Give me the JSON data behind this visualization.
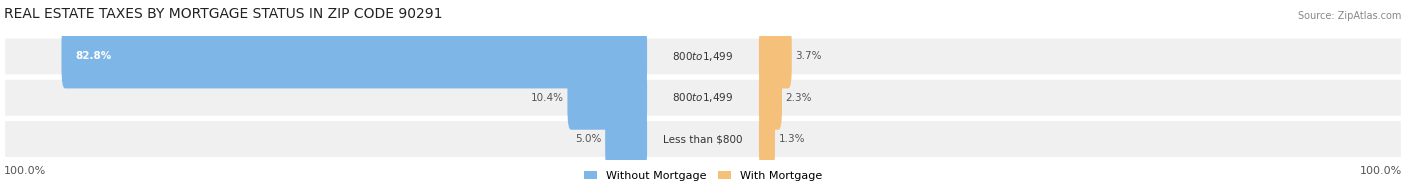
{
  "title": "REAL ESTATE TAXES BY MORTGAGE STATUS IN ZIP CODE 90291",
  "source": "Source: ZipAtlas.com",
  "rows": [
    {
      "label": "Less than $800",
      "without_mortgage": 5.0,
      "with_mortgage": 1.3
    },
    {
      "label": "$800 to $1,499",
      "without_mortgage": 10.4,
      "with_mortgage": 2.3
    },
    {
      "label": "$800 to $1,499",
      "without_mortgage": 82.8,
      "with_mortgage": 3.7
    }
  ],
  "color_without": "#7EB6E8",
  "color_with": "#F5C07A",
  "color_bg_row": "#F0F0F0",
  "color_bg_chart": "#FAFAFA",
  "bar_label_inside_threshold": 20.0,
  "max_scale": 100.0,
  "left_axis_label": "100.0%",
  "right_axis_label": "100.0%",
  "title_fontsize": 10,
  "label_fontsize": 8,
  "tick_fontsize": 8
}
